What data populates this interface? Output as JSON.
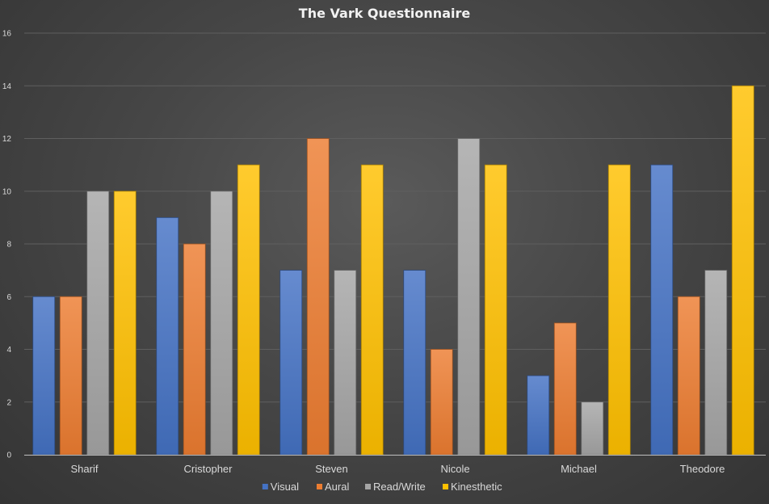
{
  "chart_data": {
    "type": "bar",
    "title": "The Vark Questionnaire",
    "categories": [
      "Sharif",
      "Cristopher",
      "Steven",
      "Nicole",
      "Michael",
      "Theodore"
    ],
    "series": [
      {
        "name": "Visual",
        "color": "#4472c4",
        "values": [
          6,
          9,
          7,
          7,
          3,
          11
        ]
      },
      {
        "name": "Aural",
        "color": "#ed7d31",
        "values": [
          6,
          8,
          12,
          4,
          5,
          6
        ]
      },
      {
        "name": "Read/Write",
        "color": "#a5a5a5",
        "values": [
          10,
          10,
          7,
          12,
          2,
          7
        ]
      },
      {
        "name": "Kinesthetic",
        "color": "#ffc000",
        "values": [
          10,
          11,
          11,
          11,
          11,
          14
        ]
      }
    ],
    "ylim": [
      0,
      16
    ],
    "yticks": [
      0,
      2,
      4,
      6,
      8,
      10,
      12,
      14,
      16
    ],
    "grid": true,
    "legend": "bottom",
    "xlabel": "",
    "ylabel": ""
  }
}
